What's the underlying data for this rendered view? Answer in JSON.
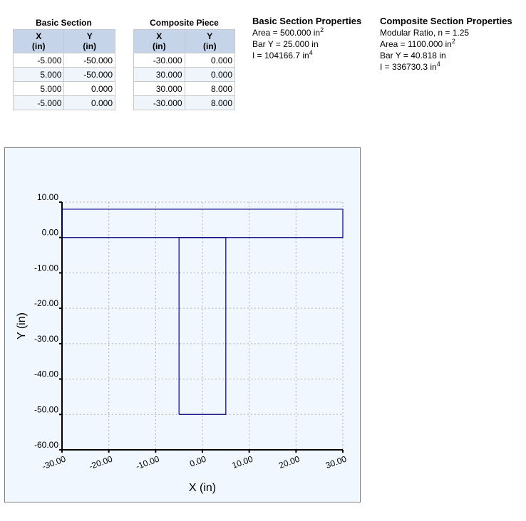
{
  "basic_table": {
    "caption": "Basic Section",
    "headers": [
      {
        "l1": "X",
        "l2": "(in)"
      },
      {
        "l1": "Y",
        "l2": "(in)"
      }
    ],
    "rows": [
      [
        "-5.000",
        "-50.000"
      ],
      [
        "5.000",
        "-50.000"
      ],
      [
        "5.000",
        "0.000"
      ],
      [
        "-5.000",
        "0.000"
      ]
    ]
  },
  "composite_table": {
    "caption": "Composite Piece",
    "headers": [
      {
        "l1": "X",
        "l2": "(in)"
      },
      {
        "l1": "Y",
        "l2": "(in)"
      }
    ],
    "rows": [
      [
        "-30.000",
        "0.000"
      ],
      [
        "30.000",
        "0.000"
      ],
      [
        "30.000",
        "8.000"
      ],
      [
        "-30.000",
        "8.000"
      ]
    ]
  },
  "basic_props": {
    "title": "Basic Section Properties",
    "area_prefix": "Area = 500.000 in",
    "area_exp": "2",
    "bary": "Bar Y = 25.000 in",
    "i_prefix": "I = 104166.7 in",
    "i_exp": "4"
  },
  "composite_props": {
    "title": "Composite Section Properties",
    "ratio": "Modular Ratio, n = 1.25",
    "area_prefix": "Area = 1100.000 in",
    "area_exp": "2",
    "bary": "Bar Y = 40.818 in",
    "i_prefix": "I = 336730.3 in",
    "i_exp": "4"
  },
  "colors": {
    "outline": "#000080",
    "grid": "#b0b0b0",
    "plot_bg": "#f0f7fe",
    "header_bg": "#c6d4ea"
  },
  "chart_data": {
    "type": "line",
    "xlabel": "X (in)",
    "ylabel": "Y (in)",
    "xlim": [
      -30,
      30
    ],
    "ylim": [
      -60,
      10
    ],
    "x_ticks": [
      -30,
      -20,
      -10,
      0,
      10,
      20,
      30
    ],
    "x_tick_labels": [
      "-30.00",
      "-20.00",
      "-10.00",
      "0.00",
      "10.00",
      "20.00",
      "30.00"
    ],
    "y_ticks": [
      10,
      0,
      -10,
      -20,
      -30,
      -40,
      -50,
      -60
    ],
    "y_tick_labels": [
      "10.00",
      "0.00",
      "-10.00",
      "-20.00",
      "-30.00",
      "-40.00",
      "-50.00",
      "-60.00"
    ],
    "grid": true,
    "series": [
      {
        "name": "Basic Section",
        "x": [
          -5,
          5,
          5,
          -5,
          -5
        ],
        "y": [
          -50,
          -50,
          0,
          0,
          -50
        ]
      },
      {
        "name": "Composite Piece",
        "x": [
          -30,
          30,
          30,
          -30,
          -30
        ],
        "y": [
          0,
          0,
          8,
          8,
          0
        ]
      }
    ]
  }
}
